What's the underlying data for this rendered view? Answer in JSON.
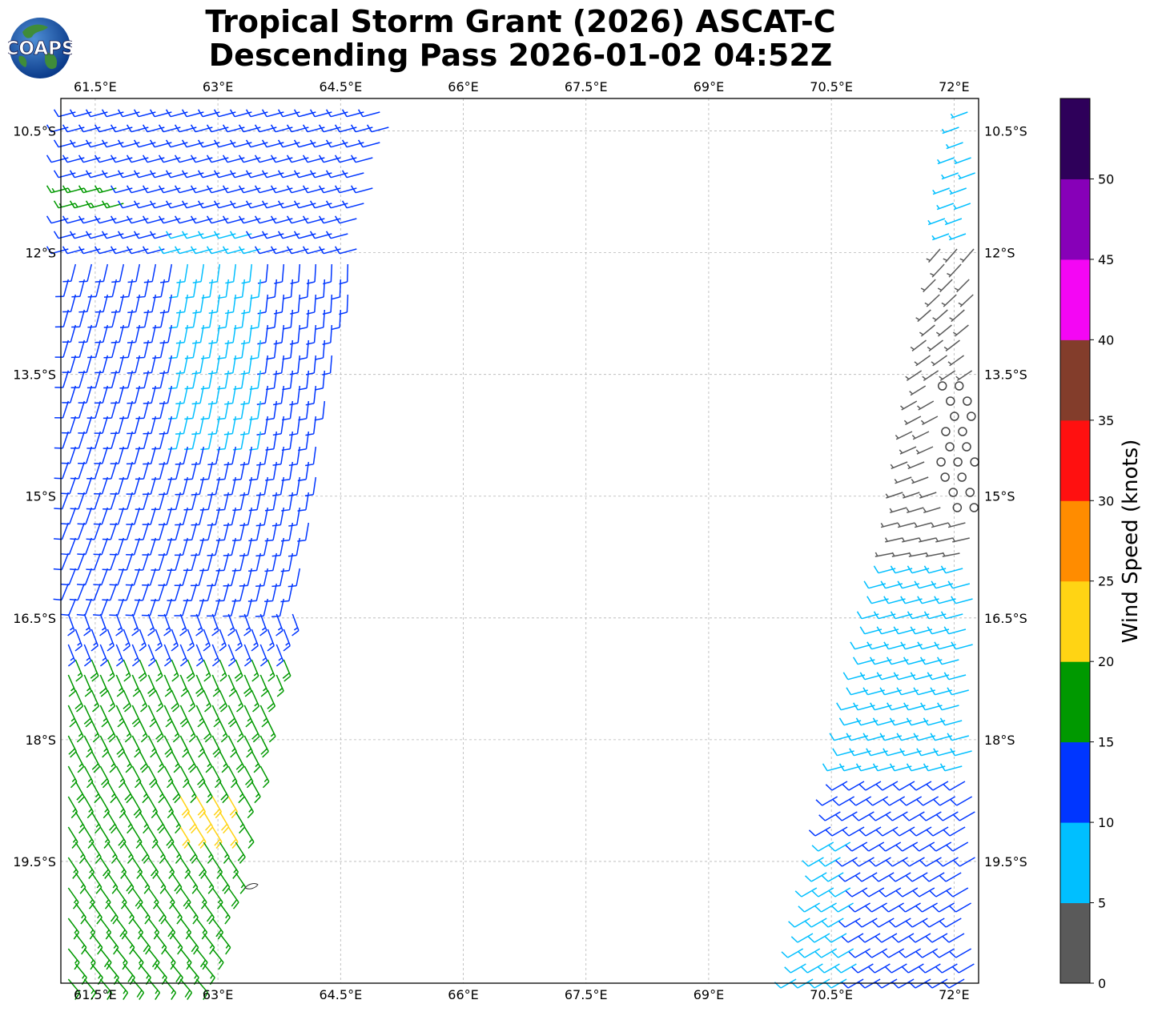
{
  "title": {
    "line1": "Tropical Storm Grant (2026) ASCAT-C",
    "line2": "Descending Pass 2026-01-02 04:52Z"
  },
  "logo": {
    "text": "COAPS",
    "icon": "globe-logo-icon"
  },
  "map": {
    "lon_ticks": [
      "61.5°E",
      "63°E",
      "64.5°E",
      "66°E",
      "67.5°E",
      "69°E",
      "70.5°E",
      "72°E"
    ],
    "lat_ticks": [
      "10.5°S",
      "12°S",
      "13.5°S",
      "15°S",
      "16.5°S",
      "18°S",
      "19.5°S"
    ],
    "lon_values": [
      61.5,
      63,
      64.5,
      66,
      67.5,
      69,
      70.5,
      72
    ],
    "lat_values": [
      -10.5,
      -12,
      -13.5,
      -15,
      -16.5,
      -18,
      -19.5
    ],
    "lon_range": [
      61.08,
      72.3
    ],
    "lat_range": [
      -21.0,
      -10.1
    ],
    "grid": true,
    "swaths": [
      {
        "name": "west",
        "lon_range": [
          61.1,
          65.2
        ],
        "lat_range": [
          -21.0,
          -10.1
        ],
        "dominant_speed_kt": "10-15"
      },
      {
        "name": "east",
        "lon_range": [
          70.1,
          72.3
        ],
        "lat_range": [
          -21.0,
          -10.1
        ],
        "dominant_speed_kt": "5-15"
      }
    ]
  },
  "colorbar": {
    "label": "Wind Speed (knots)",
    "ticks": [
      "0",
      "5",
      "10",
      "15",
      "20",
      "25",
      "30",
      "35",
      "40",
      "45",
      "50"
    ],
    "bins": [
      {
        "min": 0,
        "max": 5,
        "color": "#5a5a5a"
      },
      {
        "min": 5,
        "max": 10,
        "color": "#00bfff"
      },
      {
        "min": 10,
        "max": 15,
        "color": "#0036ff"
      },
      {
        "min": 15,
        "max": 20,
        "color": "#009900"
      },
      {
        "min": 20,
        "max": 25,
        "color": "#ffd414"
      },
      {
        "min": 25,
        "max": 30,
        "color": "#ff8c00"
      },
      {
        "min": 30,
        "max": 35,
        "color": "#ff1010"
      },
      {
        "min": 35,
        "max": 40,
        "color": "#833d2b"
      },
      {
        "min": 40,
        "max": 45,
        "color": "#f406f4"
      },
      {
        "min": 45,
        "max": 50,
        "color": "#8700b8"
      },
      {
        "min": 50,
        "max": 55,
        "color": "#2e005a"
      }
    ]
  }
}
